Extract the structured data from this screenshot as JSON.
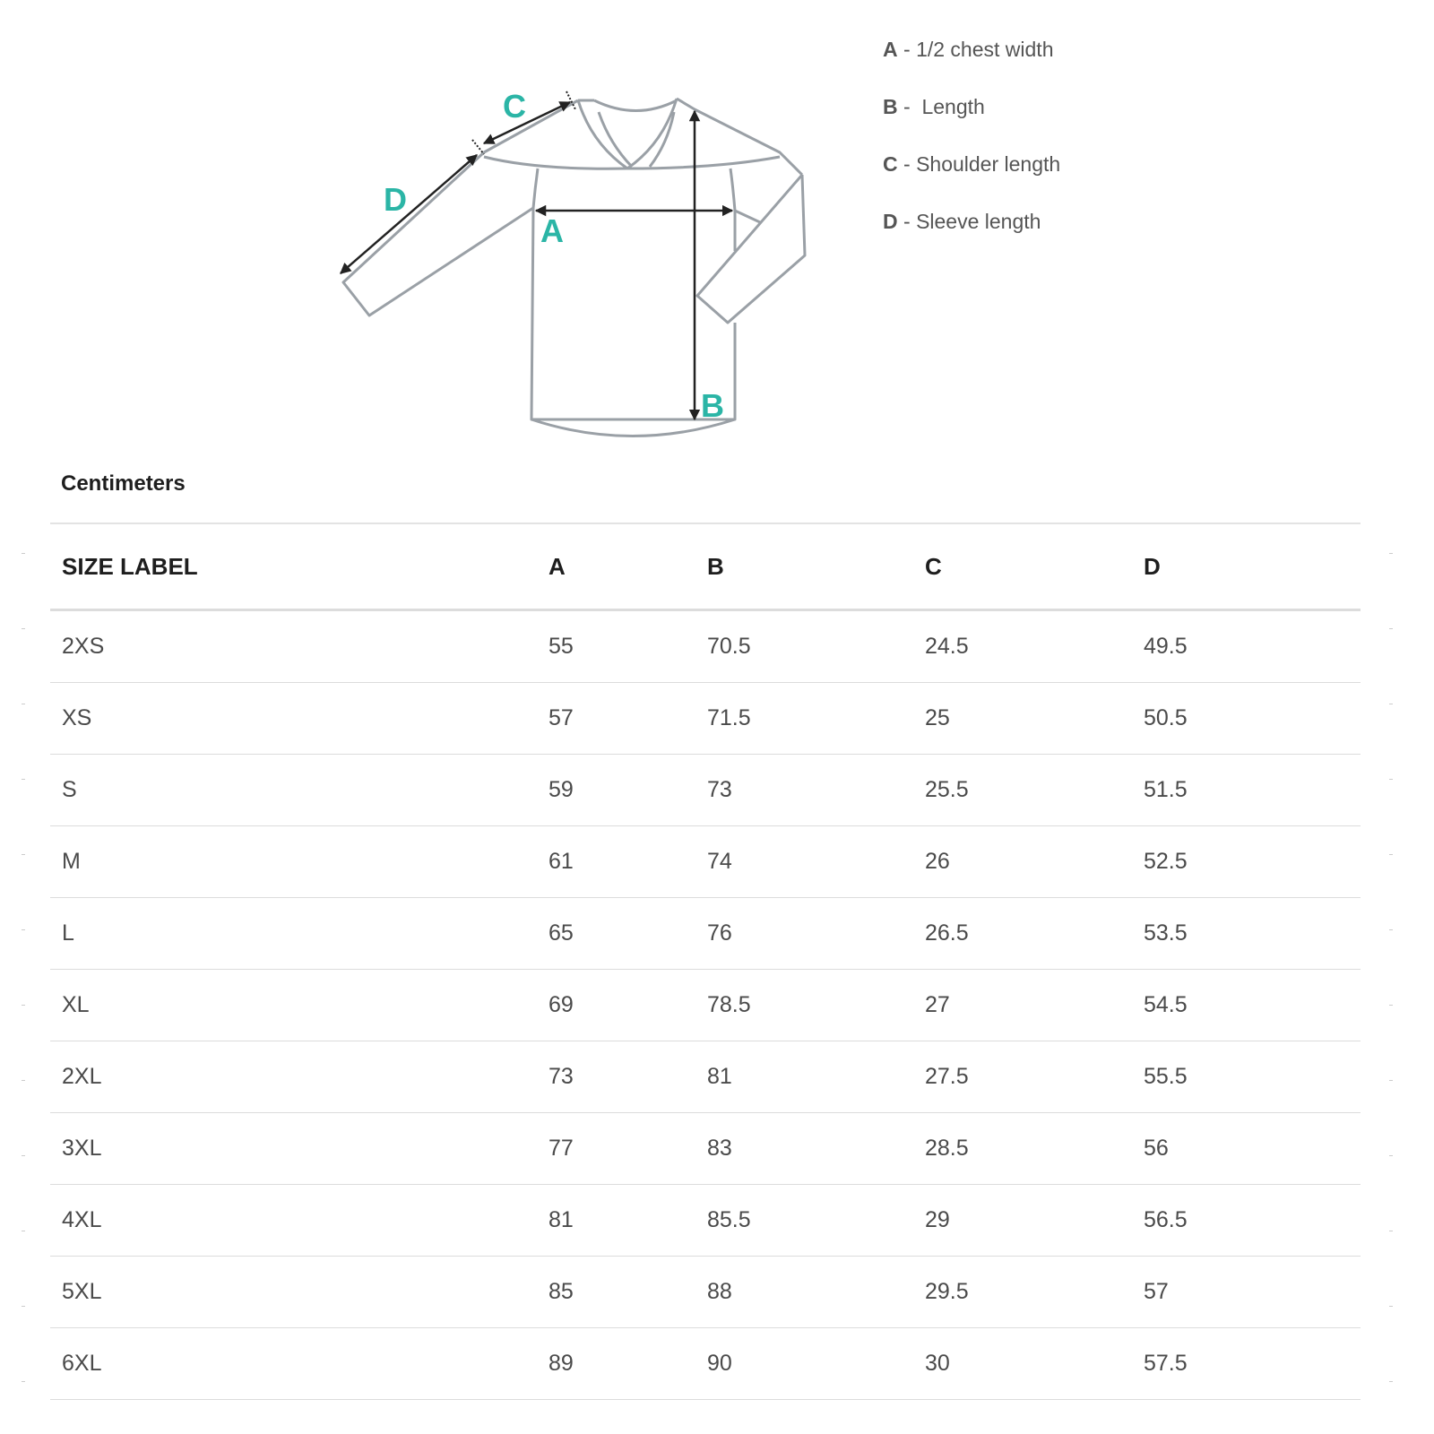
{
  "diagram": {
    "labels": {
      "a": "A",
      "b": "B",
      "c": "C",
      "d": "D"
    },
    "accent_color": "#2bb5a6",
    "outline_color": "#9aa0a6",
    "arrow_color": "#222222"
  },
  "legend": [
    {
      "key": "A",
      "text": " - 1/2 chest width"
    },
    {
      "key": "B",
      "text": " -  Length"
    },
    {
      "key": "C",
      "text": " - Shoulder length"
    },
    {
      "key": "D",
      "text": " - Sleeve length"
    }
  ],
  "units_label": "Centimeters",
  "table": {
    "headers": [
      "SIZE LABEL",
      "A",
      "B",
      "C",
      "D"
    ],
    "rows": [
      [
        "2XS",
        "55",
        "70.5",
        "24.5",
        "49.5"
      ],
      [
        "XS",
        "57",
        "71.5",
        "25",
        "50.5"
      ],
      [
        "S",
        "59",
        "73",
        "25.5",
        "51.5"
      ],
      [
        "M",
        "61",
        "74",
        "26",
        "52.5"
      ],
      [
        "L",
        "65",
        "76",
        "26.5",
        "53.5"
      ],
      [
        "XL",
        "69",
        "78.5",
        "27",
        "54.5"
      ],
      [
        "2XL",
        "73",
        "81",
        "27.5",
        "55.5"
      ],
      [
        "3XL",
        "77",
        "83",
        "28.5",
        "56"
      ],
      [
        "4XL",
        "81",
        "85.5",
        "29",
        "56.5"
      ],
      [
        "5XL",
        "85",
        "88",
        "29.5",
        "57"
      ],
      [
        "6XL",
        "89",
        "90",
        "30",
        "57.5"
      ]
    ]
  }
}
